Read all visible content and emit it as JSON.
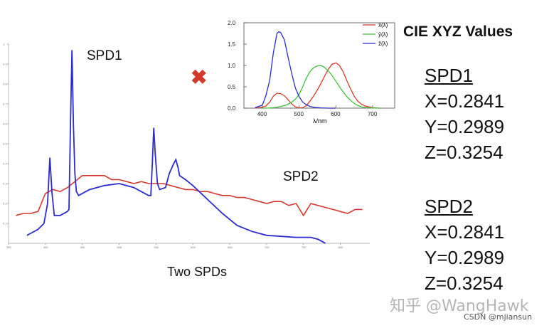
{
  "chart_data": [
    {
      "type": "line",
      "xlabel": "",
      "ylabel": "",
      "xlim": [
        350,
        840
      ],
      "ylim": [
        0,
        1
      ],
      "x_ticks": [
        350,
        400,
        450,
        500,
        550,
        600,
        650,
        700,
        750,
        800
      ],
      "y_ticks": [
        0.1,
        0.2,
        0.3,
        0.4,
        0.5,
        0.6,
        0.7,
        0.8,
        0.9,
        1
      ],
      "series": [
        {
          "name": "SPD1",
          "color": "#2b2bd0",
          "points": [
            [
              375,
              0.04
            ],
            [
              380,
              0.05
            ],
            [
              390,
              0.07
            ],
            [
              398,
              0.1
            ],
            [
              403,
              0.2
            ],
            [
              406,
              0.43
            ],
            [
              409,
              0.25
            ],
            [
              412,
              0.14
            ],
            [
              420,
              0.14
            ],
            [
              430,
              0.16
            ],
            [
              432,
              0.17
            ],
            [
              434,
              0.6
            ],
            [
              436,
              0.97
            ],
            [
              438,
              0.6
            ],
            [
              440,
              0.35
            ],
            [
              442,
              0.26
            ],
            [
              445,
              0.24
            ],
            [
              460,
              0.27
            ],
            [
              480,
              0.29
            ],
            [
              500,
              0.3
            ],
            [
              520,
              0.28
            ],
            [
              530,
              0.26
            ],
            [
              540,
              0.24
            ],
            [
              543,
              0.24
            ],
            [
              545,
              0.4
            ],
            [
              547,
              0.58
            ],
            [
              549,
              0.45
            ],
            [
              552,
              0.3
            ],
            [
              555,
              0.27
            ],
            [
              563,
              0.28
            ],
            [
              568,
              0.35
            ],
            [
              574,
              0.4
            ],
            [
              577,
              0.42
            ],
            [
              580,
              0.38
            ],
            [
              582,
              0.34
            ],
            [
              590,
              0.32
            ],
            [
              600,
              0.29
            ],
            [
              620,
              0.22
            ],
            [
              640,
              0.15
            ],
            [
              660,
              0.09
            ],
            [
              680,
              0.06
            ],
            [
              700,
              0.04
            ],
            [
              720,
              0.035
            ],
            [
              740,
              0.03
            ],
            [
              760,
              0.03
            ],
            [
              770,
              0.02
            ],
            [
              780,
              0.0
            ]
          ]
        },
        {
          "name": "SPD2",
          "color": "#d8392c",
          "points": [
            [
              360,
              0.14
            ],
            [
              370,
              0.15
            ],
            [
              380,
              0.15
            ],
            [
              390,
              0.16
            ],
            [
              400,
              0.25
            ],
            [
              410,
              0.27
            ],
            [
              420,
              0.26
            ],
            [
              430,
              0.28
            ],
            [
              440,
              0.31
            ],
            [
              450,
              0.34
            ],
            [
              460,
              0.34
            ],
            [
              470,
              0.34
            ],
            [
              480,
              0.34
            ],
            [
              490,
              0.32
            ],
            [
              500,
              0.32
            ],
            [
              510,
              0.31
            ],
            [
              520,
              0.3
            ],
            [
              530,
              0.31
            ],
            [
              540,
              0.3
            ],
            [
              550,
              0.3
            ],
            [
              560,
              0.3
            ],
            [
              570,
              0.29
            ],
            [
              580,
              0.28
            ],
            [
              590,
              0.27
            ],
            [
              600,
              0.27
            ],
            [
              610,
              0.26
            ],
            [
              620,
              0.26
            ],
            [
              630,
              0.25
            ],
            [
              640,
              0.24
            ],
            [
              650,
              0.24
            ],
            [
              660,
              0.23
            ],
            [
              670,
              0.23
            ],
            [
              680,
              0.22
            ],
            [
              690,
              0.21
            ],
            [
              700,
              0.2
            ],
            [
              710,
              0.21
            ],
            [
              720,
              0.21
            ],
            [
              730,
              0.19
            ],
            [
              740,
              0.2
            ],
            [
              750,
              0.14
            ],
            [
              760,
              0.2
            ],
            [
              770,
              0.19
            ],
            [
              780,
              0.18
            ],
            [
              790,
              0.17
            ],
            [
              800,
              0.16
            ],
            [
              810,
              0.15
            ],
            [
              820,
              0.17
            ],
            [
              830,
              0.17
            ]
          ]
        }
      ]
    },
    {
      "type": "line",
      "xlabel": "λ/nm",
      "ylabel": "",
      "xlim": [
        350,
        760
      ],
      "ylim": [
        0,
        2.0
      ],
      "x_ticks": [
        400,
        500,
        600,
        700
      ],
      "y_ticks": [
        0.0,
        0.5,
        1.0,
        1.5,
        2.0
      ],
      "series": [
        {
          "name": "x̄(λ)",
          "color": "#d8392c",
          "points": [
            [
              380,
              0.0
            ],
            [
              400,
              0.02
            ],
            [
              410,
              0.05
            ],
            [
              420,
              0.14
            ],
            [
              430,
              0.28
            ],
            [
              440,
              0.35
            ],
            [
              450,
              0.34
            ],
            [
              460,
              0.29
            ],
            [
              470,
              0.2
            ],
            [
              480,
              0.1
            ],
            [
              490,
              0.03
            ],
            [
              500,
              0.005
            ],
            [
              510,
              0.01
            ],
            [
              520,
              0.06
            ],
            [
              530,
              0.17
            ],
            [
              540,
              0.29
            ],
            [
              550,
              0.43
            ],
            [
              560,
              0.59
            ],
            [
              570,
              0.76
            ],
            [
              580,
              0.92
            ],
            [
              590,
              1.03
            ],
            [
              600,
              1.06
            ],
            [
              610,
              1.0
            ],
            [
              620,
              0.85
            ],
            [
              630,
              0.64
            ],
            [
              640,
              0.45
            ],
            [
              650,
              0.28
            ],
            [
              660,
              0.16
            ],
            [
              670,
              0.09
            ],
            [
              680,
              0.05
            ],
            [
              700,
              0.01
            ],
            [
              720,
              0.0
            ]
          ]
        },
        {
          "name": "ȳ(λ)",
          "color": "#3cc43c",
          "points": [
            [
              400,
              0.0
            ],
            [
              420,
              0.004
            ],
            [
              440,
              0.02
            ],
            [
              460,
              0.06
            ],
            [
              470,
              0.09
            ],
            [
              480,
              0.14
            ],
            [
              490,
              0.21
            ],
            [
              500,
              0.32
            ],
            [
              510,
              0.5
            ],
            [
              520,
              0.71
            ],
            [
              530,
              0.86
            ],
            [
              540,
              0.95
            ],
            [
              550,
              0.99
            ],
            [
              560,
              1.0
            ],
            [
              570,
              0.95
            ],
            [
              580,
              0.87
            ],
            [
              590,
              0.76
            ],
            [
              600,
              0.63
            ],
            [
              610,
              0.5
            ],
            [
              620,
              0.38
            ],
            [
              630,
              0.27
            ],
            [
              640,
              0.18
            ],
            [
              650,
              0.11
            ],
            [
              660,
              0.06
            ],
            [
              670,
              0.03
            ],
            [
              680,
              0.017
            ],
            [
              700,
              0.004
            ],
            [
              720,
              0.0
            ]
          ]
        },
        {
          "name": "z̄(λ)",
          "color": "#2b2bd0",
          "points": [
            [
              380,
              0.01
            ],
            [
              400,
              0.07
            ],
            [
              410,
              0.3
            ],
            [
              420,
              0.65
            ],
            [
              430,
              1.3
            ],
            [
              440,
              1.75
            ],
            [
              445,
              1.79
            ],
            [
              450,
              1.77
            ],
            [
              460,
              1.6
            ],
            [
              470,
              1.2
            ],
            [
              480,
              0.81
            ],
            [
              490,
              0.47
            ],
            [
              500,
              0.27
            ],
            [
              510,
              0.14
            ],
            [
              520,
              0.08
            ],
            [
              530,
              0.04
            ],
            [
              540,
              0.02
            ],
            [
              560,
              0.005
            ],
            [
              580,
              0.0
            ],
            [
              600,
              0.0
            ]
          ]
        }
      ]
    }
  ],
  "labels": {
    "spd1": "SPD1",
    "spd2": "SPD2",
    "caption": "Two SPDs",
    "times_symbol": "✖",
    "cie_title": "CIE XYZ Values"
  },
  "values": {
    "spd1_title": "SPD1",
    "spd1_x": "X=0.2841",
    "spd1_y": "Y=0.2989",
    "spd1_z": "Z=0.3254",
    "spd2_title": "SPD2",
    "spd2_x": "X=0.2841",
    "spd2_y": "Y=0.2989",
    "spd2_z": "Z=0.3254"
  },
  "watermark": "知乎 @WangHawk",
  "credit": "CSDN @mjiansun"
}
